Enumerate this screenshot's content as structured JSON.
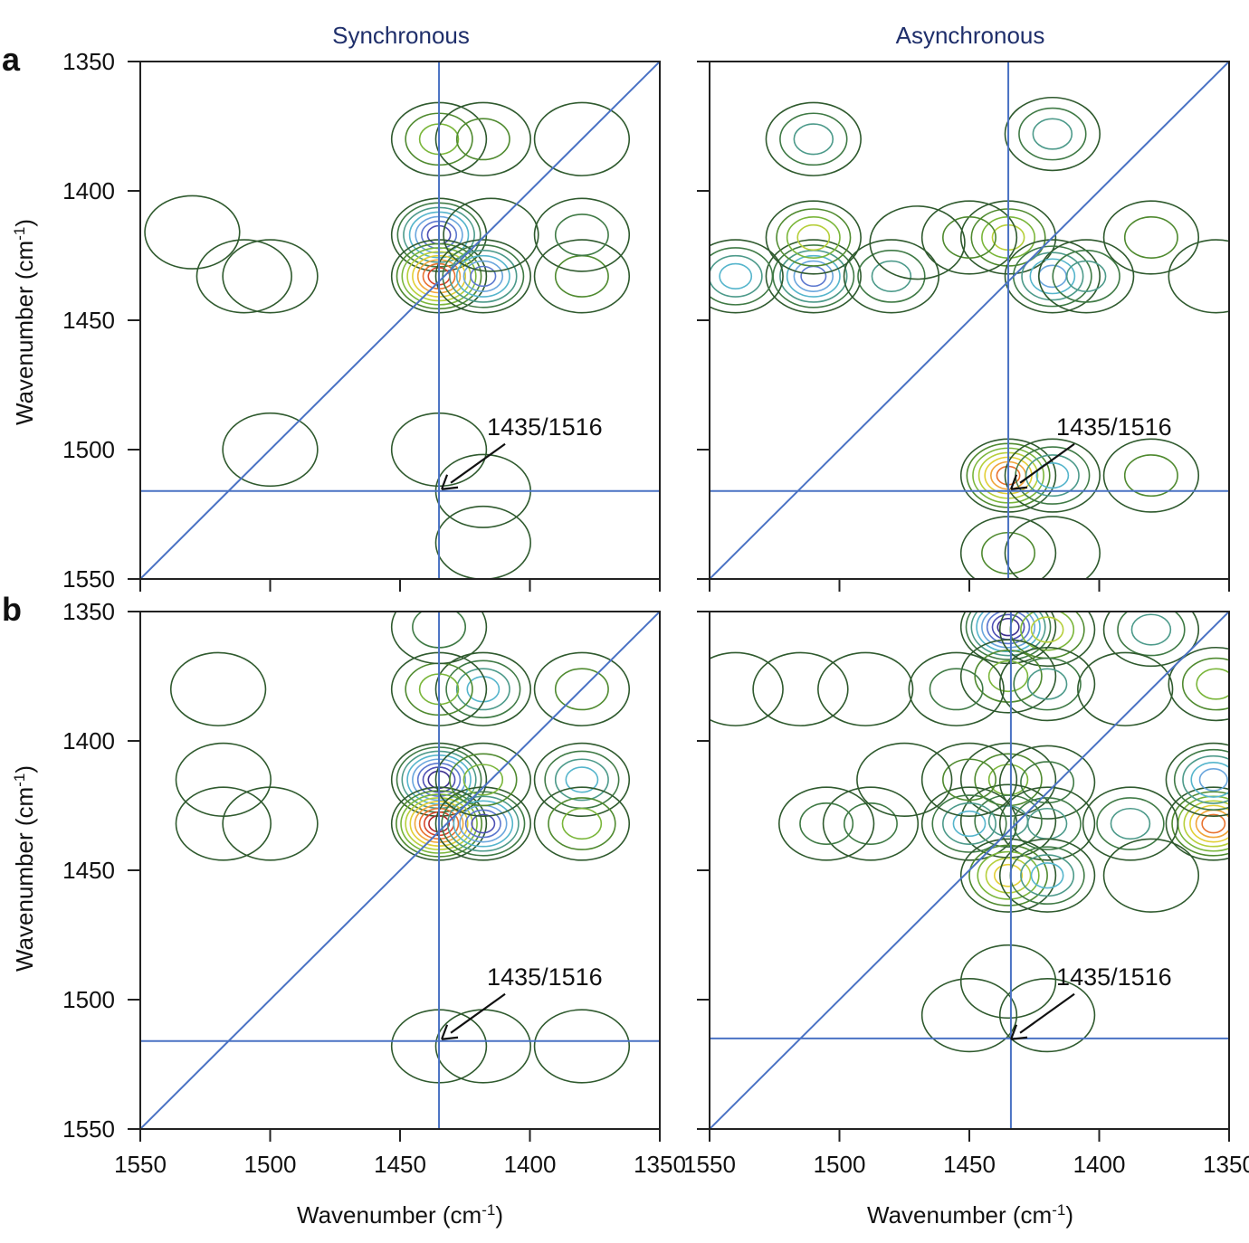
{
  "chart_data": [
    {
      "type": "contour",
      "panel": "a",
      "title": "Synchronous",
      "xlabel": "Wavenumber (cm-1)",
      "ylabel": "Wavenumber (cm-1)",
      "xlim": [
        1550,
        1350
      ],
      "ylim": [
        1550,
        1350
      ],
      "xticks": [
        1550,
        1500,
        1450,
        1400,
        1350
      ],
      "yticks": [
        1350,
        1400,
        1450,
        1500,
        1550
      ],
      "tick_labels_x": [],
      "tick_labels_y": [
        "1350",
        "1400",
        "1450",
        "1500",
        "1550"
      ],
      "reference_lines": {
        "vertical": 1435,
        "horizontal": 1516,
        "diagonal": true
      },
      "annotation": {
        "text": "1435/1516",
        "x": 1435,
        "y": 1516
      },
      "peaks": [
        {
          "x": 1435,
          "y": 1417,
          "sign": "negative",
          "levels": 7
        },
        {
          "x": 1435,
          "y": 1433,
          "sign": "positive",
          "levels": 8
        },
        {
          "x": 1418,
          "y": 1433,
          "sign": "negative",
          "levels": 6
        },
        {
          "x": 1435,
          "y": 1380,
          "sign": "positive",
          "levels": 3
        },
        {
          "x": 1418,
          "y": 1380,
          "sign": "positive",
          "levels": 2
        },
        {
          "x": 1380,
          "y": 1380,
          "sign": "positive",
          "levels": 1
        },
        {
          "x": 1380,
          "y": 1433,
          "sign": "positive",
          "levels": 2
        },
        {
          "x": 1510,
          "y": 1433,
          "sign": "positive",
          "levels": 1
        },
        {
          "x": 1500,
          "y": 1433,
          "sign": "positive",
          "levels": 1
        },
        {
          "x": 1435,
          "y": 1500,
          "sign": "positive",
          "levels": 1
        },
        {
          "x": 1418,
          "y": 1516,
          "sign": "positive",
          "levels": 1
        },
        {
          "x": 1418,
          "y": 1536,
          "sign": "positive",
          "levels": 1
        },
        {
          "x": 1500,
          "y": 1500,
          "sign": "positive",
          "levels": 1
        },
        {
          "x": 1530,
          "y": 1416,
          "sign": "positive",
          "levels": 1
        },
        {
          "x": 1380,
          "y": 1417,
          "sign": "negative",
          "levels": 2
        },
        {
          "x": 1415,
          "y": 1417,
          "sign": "negative",
          "levels": 1
        }
      ]
    },
    {
      "type": "contour",
      "panel": "a",
      "title": "Asynchronous",
      "xlabel": "",
      "ylabel": "",
      "xlim": [
        1550,
        1350
      ],
      "ylim": [
        1550,
        1350
      ],
      "xticks": [
        1550,
        1500,
        1450,
        1400,
        1350
      ],
      "yticks": [
        1350,
        1400,
        1450,
        1500,
        1550
      ],
      "tick_labels_x": [],
      "tick_labels_y": [],
      "reference_lines": {
        "vertical": 1435,
        "horizontal": 1516,
        "diagonal": true
      },
      "annotation": {
        "text": "1435/1516",
        "x": 1435,
        "y": 1516
      },
      "peaks": [
        {
          "x": 1510,
          "y": 1433,
          "sign": "negative",
          "levels": 6
        },
        {
          "x": 1510,
          "y": 1418,
          "sign": "positive",
          "levels": 4
        },
        {
          "x": 1540,
          "y": 1433,
          "sign": "negative",
          "levels": 4
        },
        {
          "x": 1510,
          "y": 1380,
          "sign": "negative",
          "levels": 3
        },
        {
          "x": 1435,
          "y": 1510,
          "sign": "positive",
          "levels": 7
        },
        {
          "x": 1418,
          "y": 1510,
          "sign": "negative",
          "levels": 4
        },
        {
          "x": 1435,
          "y": 1418,
          "sign": "positive",
          "levels": 4
        },
        {
          "x": 1418,
          "y": 1433,
          "sign": "negative",
          "levels": 5
        },
        {
          "x": 1405,
          "y": 1433,
          "sign": "negative",
          "levels": 3
        },
        {
          "x": 1418,
          "y": 1378,
          "sign": "negative",
          "levels": 3
        },
        {
          "x": 1480,
          "y": 1433,
          "sign": "negative",
          "levels": 3
        },
        {
          "x": 1450,
          "y": 1418,
          "sign": "positive",
          "levels": 2
        },
        {
          "x": 1380,
          "y": 1418,
          "sign": "positive",
          "levels": 2
        },
        {
          "x": 1380,
          "y": 1510,
          "sign": "positive",
          "levels": 2
        },
        {
          "x": 1355,
          "y": 1433,
          "sign": "negative",
          "levels": 1
        },
        {
          "x": 1435,
          "y": 1540,
          "sign": "positive",
          "levels": 2
        },
        {
          "x": 1418,
          "y": 1540,
          "sign": "negative",
          "levels": 1
        },
        {
          "x": 1470,
          "y": 1420,
          "sign": "positive",
          "levels": 1
        }
      ]
    },
    {
      "type": "contour",
      "panel": "b",
      "title": "",
      "xlabel": "Wavenumber (cm-1)",
      "ylabel": "Wavenumber (cm-1)",
      "xlim": [
        1550,
        1350
      ],
      "ylim": [
        1550,
        1350
      ],
      "xticks": [
        1550,
        1500,
        1450,
        1400,
        1350
      ],
      "yticks": [
        1350,
        1400,
        1450,
        1500,
        1550
      ],
      "tick_labels_x": [
        "1550",
        "1500",
        "1450",
        "1400",
        "1350"
      ],
      "tick_labels_y": [
        "1350",
        "1400",
        "1450",
        "1500",
        "1550"
      ],
      "reference_lines": {
        "vertical": 1435,
        "horizontal": 1516,
        "diagonal": true
      },
      "annotation": {
        "text": "1435/1516",
        "x": 1435,
        "y": 1516
      },
      "peaks": [
        {
          "x": 1435,
          "y": 1415,
          "sign": "negative",
          "levels": 8
        },
        {
          "x": 1435,
          "y": 1432,
          "sign": "positive",
          "levels": 9
        },
        {
          "x": 1418,
          "y": 1432,
          "sign": "negative",
          "levels": 7
        },
        {
          "x": 1418,
          "y": 1415,
          "sign": "positive",
          "levels": 3
        },
        {
          "x": 1418,
          "y": 1380,
          "sign": "negative",
          "levels": 4
        },
        {
          "x": 1435,
          "y": 1380,
          "sign": "positive",
          "levels": 3
        },
        {
          "x": 1380,
          "y": 1415,
          "sign": "negative",
          "levels": 4
        },
        {
          "x": 1380,
          "y": 1432,
          "sign": "positive",
          "levels": 3
        },
        {
          "x": 1380,
          "y": 1380,
          "sign": "positive",
          "levels": 2
        },
        {
          "x": 1435,
          "y": 1356,
          "sign": "negative",
          "levels": 2
        },
        {
          "x": 1518,
          "y": 1415,
          "sign": "positive",
          "levels": 1
        },
        {
          "x": 1518,
          "y": 1432,
          "sign": "positive",
          "levels": 1
        },
        {
          "x": 1435,
          "y": 1518,
          "sign": "positive",
          "levels": 1
        },
        {
          "x": 1418,
          "y": 1518,
          "sign": "positive",
          "levels": 1
        },
        {
          "x": 1380,
          "y": 1518,
          "sign": "positive",
          "levels": 1
        },
        {
          "x": 1520,
          "y": 1380,
          "sign": "positive",
          "levels": 1
        },
        {
          "x": 1500,
          "y": 1432,
          "sign": "positive",
          "levels": 1
        }
      ]
    },
    {
      "type": "contour",
      "panel": "b",
      "title": "",
      "xlabel": "Wavenumber (cm-1)",
      "ylabel": "",
      "xlim": [
        1550,
        1350
      ],
      "ylim": [
        1550,
        1350
      ],
      "xticks": [
        1550,
        1500,
        1450,
        1400,
        1350
      ],
      "yticks": [
        1350,
        1400,
        1450,
        1500,
        1550
      ],
      "tick_labels_x": [
        "1550",
        "1500",
        "1450",
        "1400",
        "1350"
      ],
      "tick_labels_y": [],
      "reference_lines": {
        "vertical": 1434,
        "horizontal": 1515,
        "diagonal": true
      },
      "annotation": {
        "text": "1435/1516",
        "x": 1435,
        "y": 1516
      },
      "peaks": [
        {
          "x": 1435,
          "y": 1356,
          "sign": "negative",
          "levels": 8
        },
        {
          "x": 1420,
          "y": 1357,
          "sign": "positive",
          "levels": 4
        },
        {
          "x": 1380,
          "y": 1357,
          "sign": "negative",
          "levels": 3
        },
        {
          "x": 1435,
          "y": 1375,
          "sign": "positive",
          "levels": 3
        },
        {
          "x": 1420,
          "y": 1378,
          "sign": "negative",
          "levels": 3
        },
        {
          "x": 1435,
          "y": 1415,
          "sign": "positive",
          "levels": 3
        },
        {
          "x": 1420,
          "y": 1416,
          "sign": "negative",
          "levels": 2
        },
        {
          "x": 1435,
          "y": 1431,
          "sign": "negative",
          "levels": 3
        },
        {
          "x": 1450,
          "y": 1432,
          "sign": "negative",
          "levels": 4
        },
        {
          "x": 1420,
          "y": 1432,
          "sign": "negative",
          "levels": 3
        },
        {
          "x": 1435,
          "y": 1452,
          "sign": "positive",
          "levels": 5
        },
        {
          "x": 1420,
          "y": 1452,
          "sign": "negative",
          "levels": 4
        },
        {
          "x": 1356,
          "y": 1432,
          "sign": "positive",
          "levels": 7
        },
        {
          "x": 1356,
          "y": 1415,
          "sign": "negative",
          "levels": 5
        },
        {
          "x": 1388,
          "y": 1432,
          "sign": "negative",
          "levels": 3
        },
        {
          "x": 1488,
          "y": 1432,
          "sign": "negative",
          "levels": 2
        },
        {
          "x": 1505,
          "y": 1432,
          "sign": "negative",
          "levels": 2
        },
        {
          "x": 1450,
          "y": 1415,
          "sign": "positive",
          "levels": 2
        },
        {
          "x": 1475,
          "y": 1415,
          "sign": "positive",
          "levels": 1
        },
        {
          "x": 1355,
          "y": 1378,
          "sign": "positive",
          "levels": 3
        },
        {
          "x": 1455,
          "y": 1380,
          "sign": "negative",
          "levels": 2
        },
        {
          "x": 1390,
          "y": 1380,
          "sign": "negative",
          "levels": 1
        },
        {
          "x": 1380,
          "y": 1452,
          "sign": "positive",
          "levels": 1
        },
        {
          "x": 1420,
          "y": 1506,
          "sign": "negative",
          "levels": 1
        },
        {
          "x": 1435,
          "y": 1493,
          "sign": "negative",
          "levels": 1
        },
        {
          "x": 1450,
          "y": 1506,
          "sign": "positive",
          "levels": 1
        },
        {
          "x": 1540,
          "y": 1380,
          "sign": "positive",
          "levels": 1
        },
        {
          "x": 1515,
          "y": 1380,
          "sign": "positive",
          "levels": 1
        },
        {
          "x": 1490,
          "y": 1380,
          "sign": "positive",
          "levels": 1
        }
      ]
    }
  ],
  "labels": {
    "panel_a": "a",
    "panel_b": "b",
    "superscript": "-1"
  }
}
